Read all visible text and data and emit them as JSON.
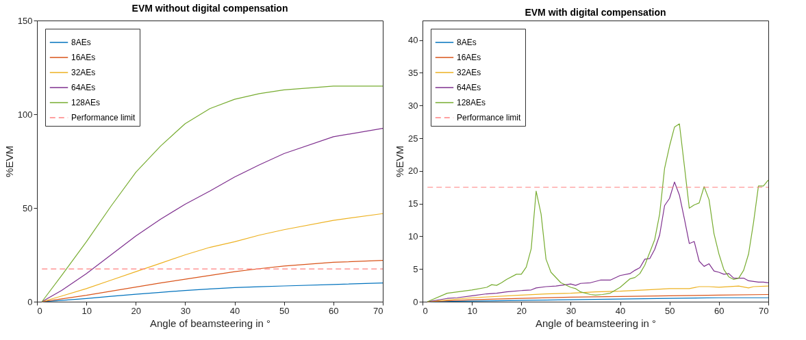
{
  "chart_data": [
    {
      "type": "line",
      "title": "EVM without digital compensation",
      "xlabel": "Angle of beamsteering in °",
      "ylabel": "%EVM",
      "xlim": [
        0,
        70
      ],
      "xticks": [
        0,
        10,
        20,
        30,
        40,
        50,
        60,
        70
      ],
      "ylim": [
        0,
        150
      ],
      "yticks": [
        0,
        50,
        100,
        150
      ],
      "grid": false,
      "legend": "top left",
      "series": [
        {
          "name": "8AEs",
          "color": "#0072bd",
          "x": [
            1,
            5,
            10,
            15,
            20,
            25,
            30,
            35,
            40,
            45,
            50,
            60,
            70
          ],
          "values": [
            0,
            0.7,
            1.7,
            2.9,
            4,
            5,
            6,
            6.8,
            7.5,
            8,
            8.4,
            9.2,
            10
          ]
        },
        {
          "name": "16AEs",
          "color": "#d95319",
          "x": [
            1,
            5,
            10,
            15,
            20,
            25,
            30,
            35,
            40,
            45,
            50,
            60,
            70
          ],
          "values": [
            0,
            1.5,
            3.4,
            5.6,
            7.8,
            10,
            12,
            14,
            16,
            17.6,
            19,
            21,
            22
          ]
        },
        {
          "name": "32AEs",
          "color": "#edb120",
          "x": [
            1,
            5,
            10,
            15,
            20,
            25,
            30,
            35,
            40,
            45,
            50,
            60,
            70
          ],
          "values": [
            0,
            3,
            7,
            11.5,
            16,
            20.5,
            25,
            29,
            32,
            35.5,
            38.4,
            43.4,
            47
          ]
        },
        {
          "name": "64AEs",
          "color": "#7e2f8e",
          "x": [
            1,
            5,
            10,
            15,
            20,
            25,
            30,
            35,
            40,
            45,
            50,
            60,
            70
          ],
          "values": [
            0,
            6,
            15,
            25,
            35,
            44,
            52,
            59,
            66.5,
            73,
            79,
            88,
            92.5
          ]
        },
        {
          "name": "128AEs",
          "color": "#77ac30",
          "x": [
            1,
            5,
            10,
            15,
            20,
            25,
            30,
            35,
            40,
            45,
            50,
            60,
            70
          ],
          "values": [
            0,
            14,
            32,
            51,
            69,
            83,
            95,
            103,
            108,
            111,
            113,
            115,
            115
          ]
        },
        {
          "name": "Performance limit",
          "color": "#ff8080",
          "line_style": "dashed",
          "x": [
            1,
            70
          ],
          "values": [
            17.5,
            17.5
          ]
        }
      ]
    },
    {
      "type": "line",
      "title": "EVM with digital compensation",
      "xlabel": "Angle of beamsteering in °",
      "ylabel": "%EVM",
      "xlim": [
        0,
        70
      ],
      "xticks": [
        0,
        10,
        20,
        30,
        40,
        50,
        60,
        70
      ],
      "ylim": [
        0,
        43
      ],
      "yticks": [
        0,
        5,
        10,
        15,
        20,
        25,
        30,
        35,
        40
      ],
      "grid": false,
      "legend": "top left",
      "series": [
        {
          "name": "8AEs",
          "color": "#0072bd",
          "x": [
            1,
            10,
            20,
            30,
            40,
            50,
            60,
            70
          ],
          "values": [
            0,
            0.1,
            0.2,
            0.3,
            0.4,
            0.5,
            0.6,
            0.6
          ]
        },
        {
          "name": "16AEs",
          "color": "#d95319",
          "x": [
            1,
            10,
            20,
            30,
            40,
            50,
            60,
            70
          ],
          "values": [
            0,
            0.3,
            0.5,
            0.7,
            0.8,
            0.9,
            1.0,
            1.1
          ]
        },
        {
          "name": "32AEs",
          "color": "#edb120",
          "x": [
            1,
            10,
            20,
            25,
            30,
            35,
            40,
            45,
            50,
            54,
            56,
            58,
            60,
            64,
            66,
            67,
            70
          ],
          "values": [
            0,
            0.6,
            1.0,
            1.2,
            1.3,
            1.5,
            1.6,
            1.8,
            2.0,
            2.0,
            2.3,
            2.3,
            2.2,
            2.4,
            2.1,
            2.3,
            2.4
          ]
        },
        {
          "name": "64AEs",
          "color": "#7e2f8e",
          "x": [
            1,
            5,
            7,
            10,
            13,
            15,
            17,
            20,
            22,
            23,
            25,
            27,
            30,
            31,
            32,
            34,
            36,
            38,
            40,
            42,
            43,
            44,
            45,
            46,
            47,
            48,
            49,
            50,
            51,
            52,
            53,
            54,
            55,
            56,
            57,
            58,
            59,
            60,
            61,
            62,
            63,
            65,
            66,
            68,
            69,
            70
          ],
          "values": [
            0,
            0.5,
            0.6,
            0.9,
            1.2,
            1.3,
            1.5,
            1.7,
            1.8,
            2.1,
            2.3,
            2.4,
            2.7,
            2.5,
            2.8,
            2.9,
            3.3,
            3.3,
            4.0,
            4.3,
            4.8,
            5.2,
            6.5,
            6.6,
            8.0,
            10.2,
            14.7,
            15.8,
            18.3,
            16.3,
            12.7,
            8.9,
            9.2,
            6.2,
            5.4,
            5.8,
            4.7,
            4.5,
            4.2,
            4.3,
            3.6,
            3.6,
            3.2,
            3.0,
            3.0,
            2.9
          ]
        },
        {
          "name": "128AEs",
          "color": "#77ac30",
          "x": [
            1,
            5,
            10,
            13,
            14,
            15,
            16,
            17,
            19,
            20,
            21,
            22,
            23,
            24,
            25,
            26,
            28,
            30,
            31,
            32,
            34,
            35,
            36.4,
            38,
            40,
            42,
            43,
            44,
            45,
            47,
            48,
            49,
            50,
            51,
            52,
            53,
            54,
            55,
            56,
            57,
            58,
            59,
            60,
            61,
            62,
            63,
            64,
            65,
            66,
            67,
            68,
            69,
            70
          ],
          "values": [
            0,
            1.3,
            1.8,
            2.2,
            2.6,
            2.5,
            2.9,
            3.4,
            4.2,
            4.2,
            5.3,
            8.1,
            16.9,
            13.4,
            6.5,
            4.5,
            2.9,
            2.2,
            2.0,
            1.5,
            1.1,
            1.0,
            1.1,
            1.3,
            2.2,
            3.5,
            3.7,
            4.3,
            5.6,
            9.5,
            13.4,
            20.4,
            23.8,
            26.7,
            27.2,
            20.8,
            14.3,
            14.8,
            15.1,
            17.6,
            15.6,
            10.4,
            7.3,
            4.9,
            3.8,
            3.4,
            3.6,
            4.8,
            7.3,
            12.1,
            17.7,
            17.7,
            18.6
          ]
        },
        {
          "name": "Performance limit",
          "color": "#ff8080",
          "line_style": "dashed",
          "x": [
            1,
            70
          ],
          "values": [
            17.5,
            17.5
          ]
        }
      ]
    }
  ]
}
